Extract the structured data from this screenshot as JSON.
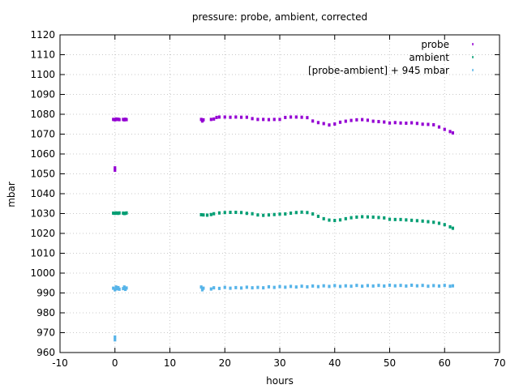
{
  "chart_data": {
    "type": "scatter",
    "title": "pressure: probe, ambient, corrected",
    "xlabel": "hours",
    "ylabel": "mbar",
    "xlim": [
      -10,
      70
    ],
    "ylim": [
      960,
      1120
    ],
    "xticks": [
      -10,
      0,
      10,
      20,
      30,
      40,
      50,
      60,
      70
    ],
    "yticks": [
      960,
      970,
      980,
      990,
      1000,
      1010,
      1020,
      1030,
      1040,
      1050,
      1060,
      1070,
      1080,
      1090,
      1100,
      1110,
      1120
    ],
    "grid": true,
    "legend_position": "top-right",
    "series": [
      {
        "name": "probe",
        "color": "#9400d3",
        "marker": "tick",
        "points": [
          [
            -0.3,
            1077.4
          ],
          [
            0.0,
            1077.2
          ],
          [
            0.2,
            1077.6
          ],
          [
            0.4,
            1077.4
          ],
          [
            0.6,
            1077.5
          ],
          [
            0.8,
            1077.3
          ],
          [
            0.0,
            1053.0
          ],
          [
            0.0,
            1051.8
          ],
          [
            1.5,
            1077.4
          ],
          [
            1.7,
            1077.2
          ],
          [
            1.9,
            1077.5
          ],
          [
            2.1,
            1077.3
          ],
          [
            15.7,
            1077.4
          ],
          [
            15.9,
            1076.6
          ],
          [
            16.1,
            1077.2
          ],
          [
            17.5,
            1077.4
          ],
          [
            18.0,
            1077.6
          ],
          [
            18.5,
            1078.4
          ],
          [
            19.0,
            1078.6
          ],
          [
            20.0,
            1078.6
          ],
          [
            21.0,
            1078.5
          ],
          [
            22.0,
            1078.6
          ],
          [
            23.0,
            1078.5
          ],
          [
            24.0,
            1078.5
          ],
          [
            25.0,
            1077.8
          ],
          [
            26.0,
            1077.4
          ],
          [
            27.0,
            1077.4
          ],
          [
            28.0,
            1077.3
          ],
          [
            29.0,
            1077.4
          ],
          [
            30.0,
            1077.4
          ],
          [
            31.0,
            1078.4
          ],
          [
            32.0,
            1078.6
          ],
          [
            33.0,
            1078.6
          ],
          [
            34.0,
            1078.5
          ],
          [
            35.0,
            1078.3
          ],
          [
            36.0,
            1076.6
          ],
          [
            37.0,
            1075.8
          ],
          [
            38.0,
            1075.3
          ],
          [
            39.0,
            1074.6
          ],
          [
            40.0,
            1075.1
          ],
          [
            41.0,
            1076.0
          ],
          [
            42.0,
            1076.5
          ],
          [
            43.0,
            1076.9
          ],
          [
            44.0,
            1077.2
          ],
          [
            45.0,
            1077.3
          ],
          [
            46.0,
            1077.0
          ],
          [
            47.0,
            1076.5
          ],
          [
            48.0,
            1076.3
          ],
          [
            49.0,
            1076.1
          ],
          [
            50.0,
            1075.6
          ],
          [
            51.0,
            1075.8
          ],
          [
            52.0,
            1075.6
          ],
          [
            53.0,
            1075.5
          ],
          [
            54.0,
            1075.7
          ],
          [
            55.0,
            1075.4
          ],
          [
            56.0,
            1075.0
          ],
          [
            57.0,
            1074.9
          ],
          [
            58.0,
            1074.7
          ],
          [
            59.0,
            1073.6
          ],
          [
            60.0,
            1072.4
          ],
          [
            61.0,
            1071.3
          ],
          [
            61.5,
            1070.6
          ]
        ]
      },
      {
        "name": "ambient",
        "color": "#009e73",
        "marker": "tick",
        "points": [
          [
            -0.3,
            1030.2
          ],
          [
            0.0,
            1030.1
          ],
          [
            0.2,
            1030.3
          ],
          [
            0.4,
            1030.2
          ],
          [
            0.6,
            1030.1
          ],
          [
            0.8,
            1030.3
          ],
          [
            1.5,
            1030.2
          ],
          [
            1.7,
            1030.0
          ],
          [
            1.9,
            1030.1
          ],
          [
            2.1,
            1030.3
          ],
          [
            15.7,
            1029.4
          ],
          [
            16.1,
            1029.3
          ],
          [
            16.8,
            1029.2
          ],
          [
            17.5,
            1029.5
          ],
          [
            18.0,
            1029.9
          ],
          [
            19.0,
            1030.3
          ],
          [
            20.0,
            1030.5
          ],
          [
            21.0,
            1030.6
          ],
          [
            22.0,
            1030.6
          ],
          [
            23.0,
            1030.5
          ],
          [
            24.0,
            1030.1
          ],
          [
            25.0,
            1029.9
          ],
          [
            26.0,
            1029.3
          ],
          [
            27.0,
            1029.1
          ],
          [
            28.0,
            1029.3
          ],
          [
            29.0,
            1029.5
          ],
          [
            30.0,
            1029.7
          ],
          [
            31.0,
            1029.8
          ],
          [
            32.0,
            1030.2
          ],
          [
            33.0,
            1030.5
          ],
          [
            34.0,
            1030.7
          ],
          [
            35.0,
            1030.5
          ],
          [
            36.0,
            1029.8
          ],
          [
            37.0,
            1028.6
          ],
          [
            38.0,
            1027.4
          ],
          [
            39.0,
            1026.7
          ],
          [
            40.0,
            1026.5
          ],
          [
            41.0,
            1026.8
          ],
          [
            42.0,
            1027.4
          ],
          [
            43.0,
            1027.9
          ],
          [
            44.0,
            1028.2
          ],
          [
            45.0,
            1028.4
          ],
          [
            46.0,
            1028.3
          ],
          [
            47.0,
            1028.2
          ],
          [
            48.0,
            1028.0
          ],
          [
            49.0,
            1027.8
          ],
          [
            50.0,
            1027.1
          ],
          [
            51.0,
            1027.0
          ],
          [
            52.0,
            1027.0
          ],
          [
            53.0,
            1026.8
          ],
          [
            54.0,
            1026.6
          ],
          [
            55.0,
            1026.4
          ],
          [
            56.0,
            1026.2
          ],
          [
            57.0,
            1025.9
          ],
          [
            58.0,
            1025.6
          ],
          [
            59.0,
            1025.1
          ],
          [
            60.0,
            1024.4
          ],
          [
            61.0,
            1023.3
          ],
          [
            61.5,
            1022.6
          ]
        ]
      },
      {
        "name": "[probe-ambient] + 945 mbar",
        "color": "#56b4e9",
        "marker": "tick",
        "points": [
          [
            -0.3,
            992.4
          ],
          [
            0.0,
            991.6
          ],
          [
            0.2,
            993.0
          ],
          [
            0.4,
            992.1
          ],
          [
            0.6,
            992.7
          ],
          [
            0.8,
            991.9
          ],
          [
            0.0,
            967.8
          ],
          [
            0.0,
            966.4
          ],
          [
            1.5,
            992.2
          ],
          [
            1.7,
            993.0
          ],
          [
            1.9,
            991.8
          ],
          [
            2.1,
            992.5
          ],
          [
            15.7,
            993.0
          ],
          [
            15.9,
            991.6
          ],
          [
            16.1,
            992.4
          ],
          [
            17.5,
            992.0
          ],
          [
            18.0,
            992.6
          ],
          [
            19.0,
            992.3
          ],
          [
            20.0,
            992.8
          ],
          [
            21.0,
            992.4
          ],
          [
            22.0,
            992.7
          ],
          [
            23.0,
            992.5
          ],
          [
            24.0,
            992.9
          ],
          [
            25.0,
            992.6
          ],
          [
            26.0,
            992.8
          ],
          [
            27.0,
            992.6
          ],
          [
            28.0,
            993.1
          ],
          [
            29.0,
            992.8
          ],
          [
            30.0,
            993.2
          ],
          [
            31.0,
            992.9
          ],
          [
            32.0,
            993.3
          ],
          [
            33.0,
            993.0
          ],
          [
            34.0,
            993.4
          ],
          [
            35.0,
            993.1
          ],
          [
            36.0,
            993.5
          ],
          [
            37.0,
            993.2
          ],
          [
            38.0,
            993.6
          ],
          [
            39.0,
            993.3
          ],
          [
            40.0,
            993.7
          ],
          [
            41.0,
            993.3
          ],
          [
            42.0,
            993.6
          ],
          [
            43.0,
            993.4
          ],
          [
            44.0,
            993.8
          ],
          [
            45.0,
            993.4
          ],
          [
            46.0,
            993.7
          ],
          [
            47.0,
            993.5
          ],
          [
            48.0,
            993.8
          ],
          [
            49.0,
            993.5
          ],
          [
            50.0,
            993.9
          ],
          [
            51.0,
            993.6
          ],
          [
            52.0,
            993.8
          ],
          [
            53.0,
            993.5
          ],
          [
            54.0,
            993.9
          ],
          [
            55.0,
            993.6
          ],
          [
            56.0,
            993.8
          ],
          [
            57.0,
            993.4
          ],
          [
            58.0,
            993.7
          ],
          [
            59.0,
            993.5
          ],
          [
            60.0,
            993.8
          ],
          [
            61.0,
            993.4
          ],
          [
            61.5,
            993.6
          ]
        ]
      }
    ]
  }
}
